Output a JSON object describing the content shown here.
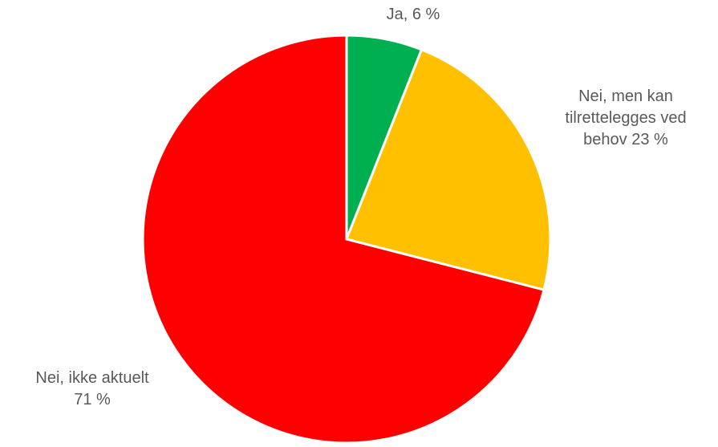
{
  "chart_data": {
    "type": "pie",
    "start_angle": "12 o'clock",
    "direction": "clockwise",
    "slices": [
      {
        "name": "Ja",
        "value": 6,
        "color": "#00B050",
        "label_lines": [
          "Ja, 6 %"
        ]
      },
      {
        "name": "Nei, men kan tilrettelegges ved behov",
        "value": 23,
        "color": "#FFC000",
        "label_lines": [
          "Nei, men kan",
          "tilrettelegges ved",
          "behov 23 %"
        ]
      },
      {
        "name": "Nei, ikke aktuelt",
        "value": 71,
        "color": "#FF0000",
        "label_lines": [
          "Nei, ikke aktuelt",
          "71 %"
        ]
      }
    ]
  }
}
